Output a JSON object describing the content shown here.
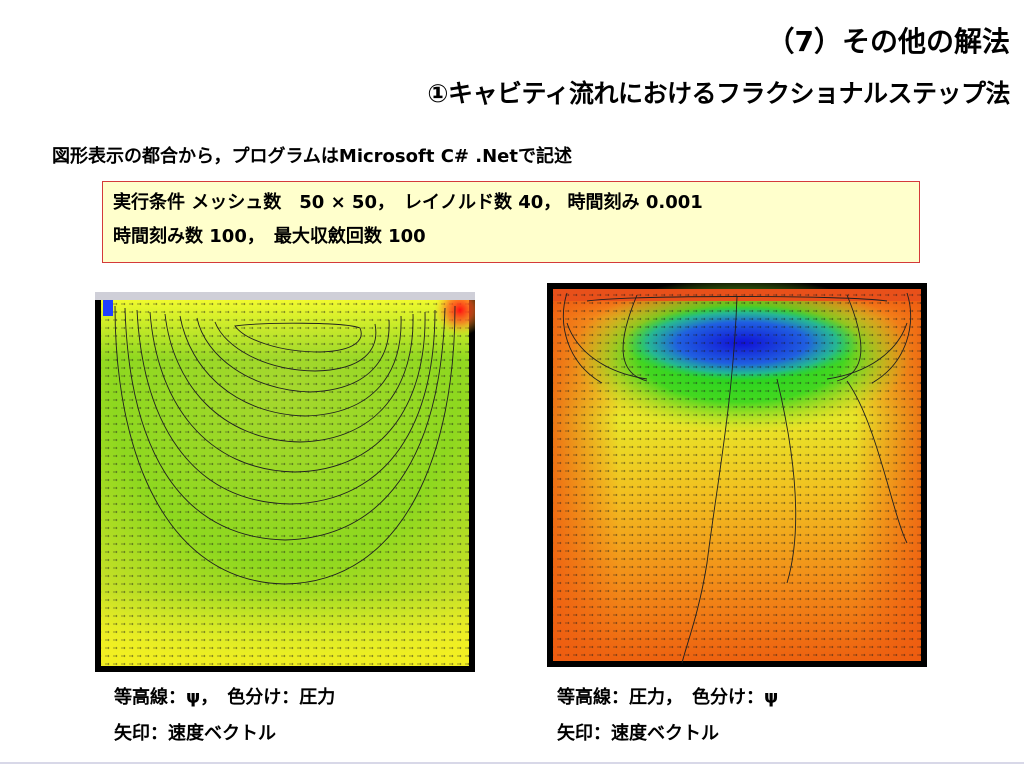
{
  "title": {
    "line1": "（7）その他の解法",
    "line2": "①キャビティ流れにおけるフラクショナルステップ法"
  },
  "intro": "図形表示の都合から，プログラムはMicrosoft C# .Netで記述",
  "conditions": {
    "line1": "実行条件 メッシュ数　50 × 50，　レイノルド数 40，  時間刻み 0.001",
    "line2": "時間刻み数  100，　最大収斂回数 100"
  },
  "left_figure": {
    "caption_line1": "等高線：ψ，　色分け：圧力",
    "caption_line2": "矢印：速度ベクトル"
  },
  "right_figure": {
    "caption_line1": "等高線：圧力，　色分け：ψ",
    "caption_line2": "矢印：速度ベクトル"
  },
  "colors": {
    "condition_border": "#d43a3a",
    "condition_fill": "#ffffcc"
  }
}
